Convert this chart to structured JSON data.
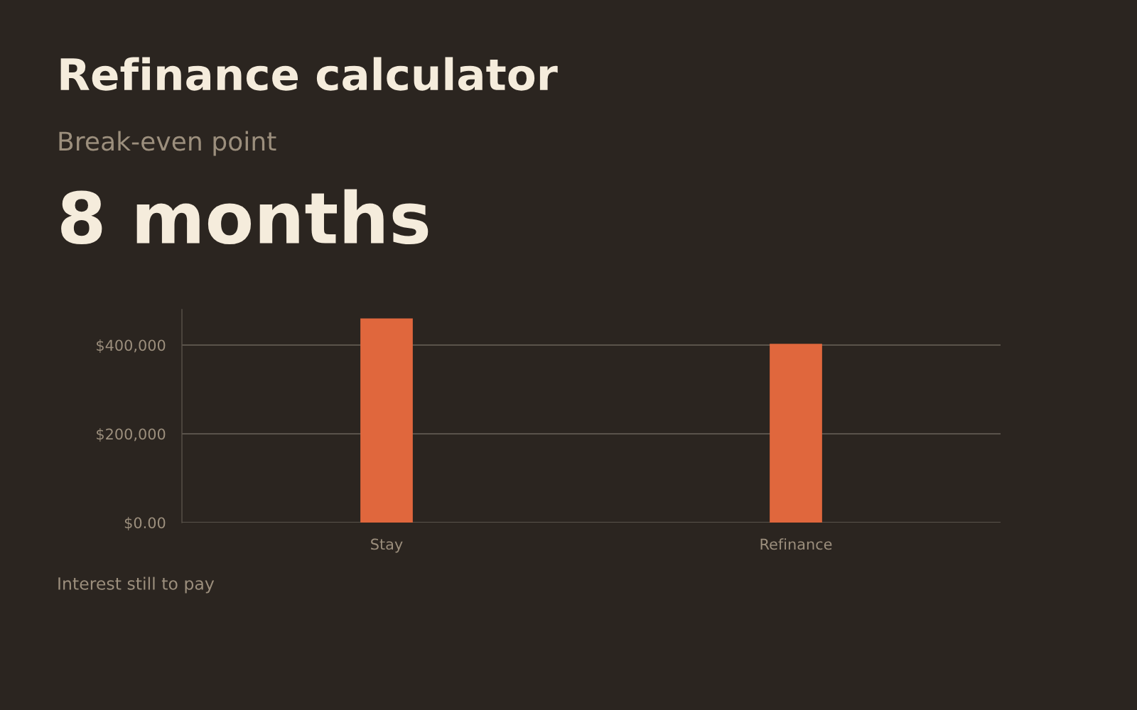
{
  "chart_data": {
    "type": "bar",
    "title": "Refinance calculator",
    "subtitle": "Break-even point",
    "annotations": [
      "8 months",
      "Interest still to pay"
    ],
    "categories": [
      "Stay",
      "Refinance"
    ],
    "series": [
      {
        "color": "#e0673d",
        "values": [
          460000,
          403000
        ]
      }
    ],
    "yticks": [
      {
        "value": 0,
        "label": "$0.00"
      },
      {
        "value": 200000,
        "label": "$200,000"
      },
      {
        "value": 400000,
        "label": "$400,000"
      }
    ],
    "ylim": [
      0,
      480000
    ],
    "grid": "y",
    "legend": false
  }
}
